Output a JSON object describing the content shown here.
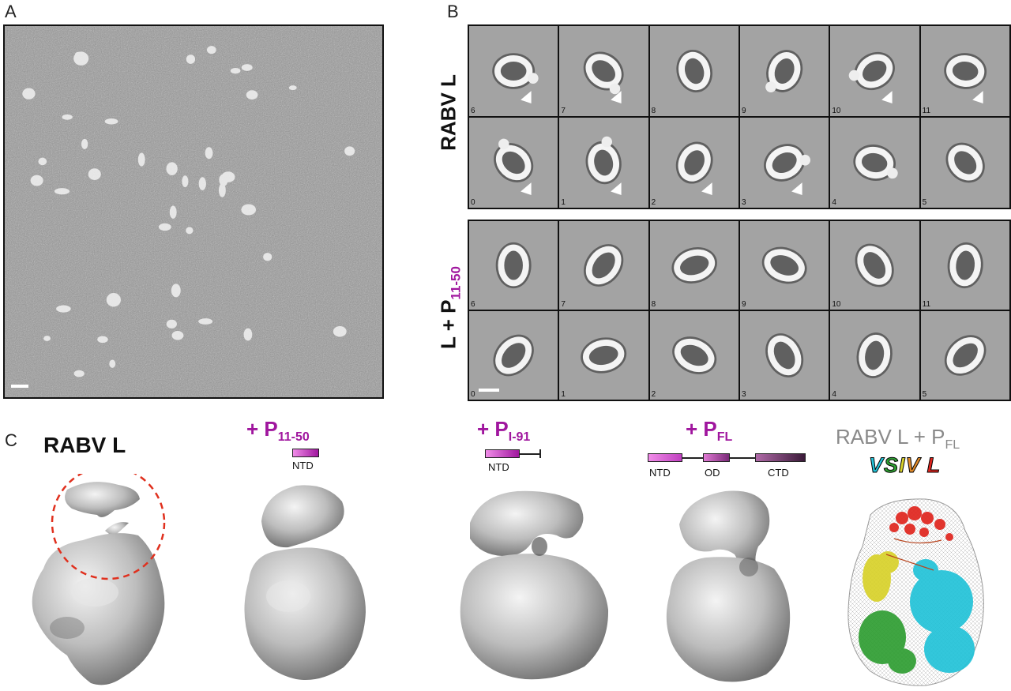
{
  "panels": {
    "a": {
      "letter": "A"
    },
    "b": {
      "letter": "B",
      "top_label": "RABV L",
      "bottom_label_main": "L + P",
      "bottom_label_sub": "11-50",
      "top_numbers": [
        "6",
        "7",
        "8",
        "9",
        "10",
        "11",
        "0",
        "1",
        "2",
        "3",
        "4",
        "5"
      ],
      "bottom_numbers": [
        "6",
        "7",
        "8",
        "9",
        "10",
        "11",
        "0",
        "1",
        "2",
        "3",
        "4",
        "5"
      ]
    },
    "c": {
      "letter": "C",
      "rabv_title": "RABV L",
      "p1150_prefix": "+ P",
      "p1150_sub": "11-50",
      "p1150_domain": "NTD",
      "p191_prefix": "+ P",
      "p191_sub": "I-91",
      "p191_domain": "NTD",
      "pfl_prefix": "+ P",
      "pfl_sub": "FL",
      "pfl_domains": [
        "NTD",
        "OD",
        "CTD"
      ],
      "overlay_title_main": "RABV L + P",
      "overlay_title_sub": "FL",
      "vsiv_letters": [
        "V",
        "S",
        "I",
        "V",
        " ",
        "L"
      ]
    }
  },
  "colors": {
    "magenta": "#a0169e",
    "gray_text": "#8a8a8a",
    "dashed_circle": "#e0301e",
    "vsiv_letter_colors": [
      "#22c3d8",
      "#2f9e32",
      "#d9d22a",
      "#e08a2a",
      "#000000",
      "#e0251e"
    ]
  }
}
